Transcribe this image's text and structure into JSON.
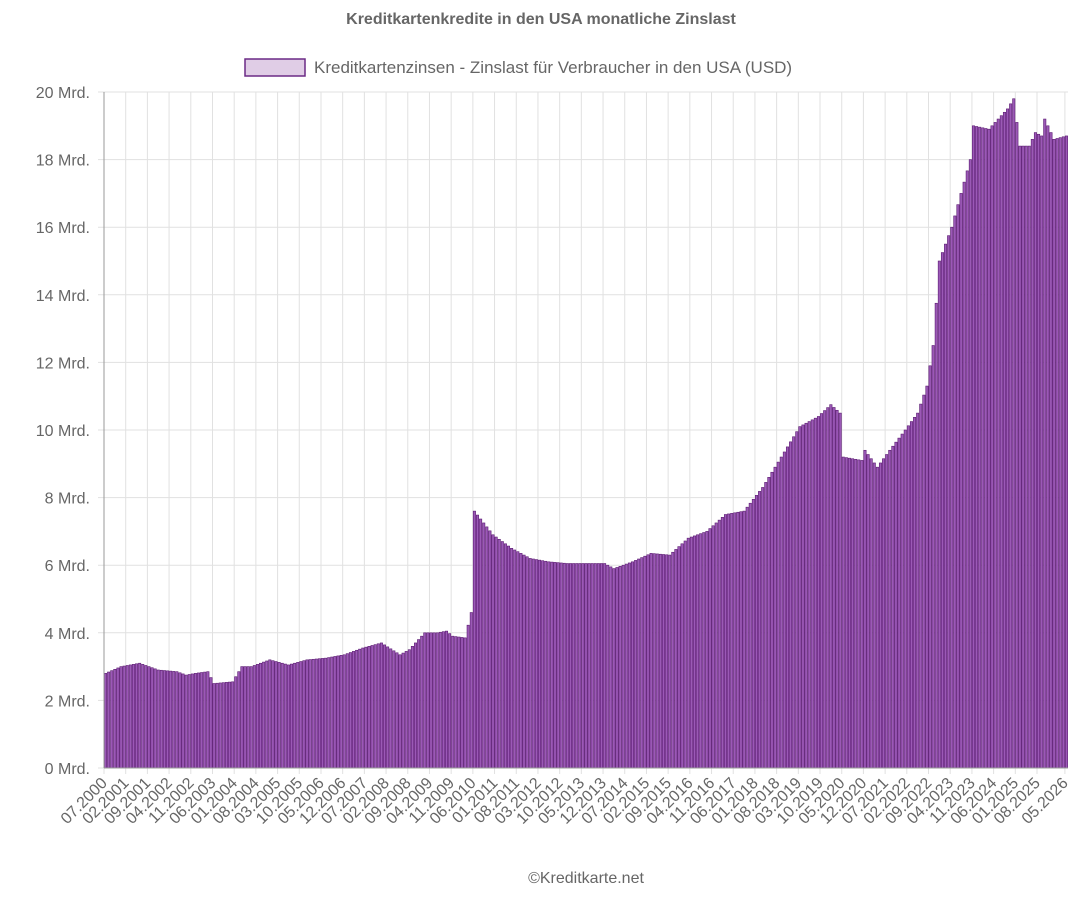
{
  "colors": {
    "bar_fill": "#9b59b6",
    "bar_stroke": "#5b1a72",
    "legend_fill": "#e0cde6",
    "grid": "#e1e1e1",
    "axis": "#666666",
    "text": "#666666"
  },
  "chart_data": {
    "type": "bar",
    "title": "Kreditkartenkredite in den USA monatliche Zinslast",
    "legend_position": "top",
    "series": [
      {
        "name": "Kreditkartenzinsen - Zinslast für Verbraucher in den USA (USD)"
      }
    ],
    "ylim": [
      0,
      20
    ],
    "y_unit": "Mrd.",
    "y_ticks": [
      0,
      2,
      4,
      6,
      8,
      10,
      12,
      14,
      16,
      18,
      20
    ],
    "y_tick_labels": [
      "0 Mrd.",
      "2 Mrd.",
      "4 Mrd.",
      "6 Mrd.",
      "8 Mrd.",
      "10 Mrd.",
      "12 Mrd.",
      "14 Mrd.",
      "16 Mrd.",
      "18 Mrd.",
      "20 Mrd."
    ],
    "x_tick_labels": [
      "07.2000",
      "02.2001",
      "09.2001",
      "04.2002",
      "11.2002",
      "06.2003",
      "01.2004",
      "08.2004",
      "03.2005",
      "10.2005",
      "05.2006",
      "12.2006",
      "07.2007",
      "02.2008",
      "09.2008",
      "04.2009",
      "11.2009",
      "06.2010",
      "01.2011",
      "08.2011",
      "03.2012",
      "10.2012",
      "05.2013",
      "12.2013",
      "07.2014",
      "02.2015",
      "09.2015",
      "04.2016",
      "11.2016",
      "06.2017",
      "01.2018",
      "08.2018",
      "03.2019",
      "10.2019",
      "05.2020",
      "12.2020",
      "07.2021",
      "02.2022",
      "09.2022",
      "04.2023",
      "11.2023",
      "06.2024",
      "01.2025",
      "08.2025",
      "05.2026"
    ],
    "grid": true,
    "anchors": [
      [
        "07.2000",
        2.8
      ],
      [
        "12.2000",
        3.0
      ],
      [
        "06.2001",
        3.1
      ],
      [
        "12.2001",
        2.9
      ],
      [
        "06.2002",
        2.85
      ],
      [
        "09.2002",
        2.75
      ],
      [
        "12.2002",
        2.8
      ],
      [
        "04.2003",
        2.85
      ],
      [
        "06.2003",
        2.5
      ],
      [
        "12.2003",
        2.55
      ],
      [
        "03.2004",
        3.0
      ],
      [
        "06.2004",
        3.0
      ],
      [
        "12.2004",
        3.2
      ],
      [
        "06.2005",
        3.05
      ],
      [
        "12.2005",
        3.2
      ],
      [
        "06.2006",
        3.25
      ],
      [
        "12.2006",
        3.35
      ],
      [
        "06.2007",
        3.55
      ],
      [
        "12.2007",
        3.7
      ],
      [
        "06.2008",
        3.35
      ],
      [
        "09.2008",
        3.5
      ],
      [
        "02.2009",
        4.0
      ],
      [
        "06.2009",
        4.0
      ],
      [
        "09.2009",
        4.05
      ],
      [
        "11.2009",
        3.9
      ],
      [
        "03.2010",
        3.85
      ],
      [
        "05.2010",
        4.6
      ],
      [
        "06.2010",
        7.6
      ],
      [
        "12.2010",
        6.9
      ],
      [
        "06.2011",
        6.5
      ],
      [
        "12.2011",
        6.2
      ],
      [
        "06.2012",
        6.1
      ],
      [
        "12.2012",
        6.05
      ],
      [
        "06.2013",
        6.05
      ],
      [
        "12.2013",
        6.05
      ],
      [
        "03.2014",
        5.9
      ],
      [
        "09.2014",
        6.1
      ],
      [
        "03.2015",
        6.35
      ],
      [
        "09.2015",
        6.3
      ],
      [
        "03.2016",
        6.8
      ],
      [
        "09.2016",
        7.0
      ],
      [
        "03.2017",
        7.5
      ],
      [
        "09.2017",
        7.6
      ],
      [
        "03.2018",
        8.3
      ],
      [
        "09.2018",
        9.2
      ],
      [
        "03.2019",
        10.1
      ],
      [
        "09.2019",
        10.4
      ],
      [
        "01.2020",
        10.75
      ],
      [
        "04.2020",
        10.5
      ],
      [
        "05.2020",
        9.2
      ],
      [
        "11.2020",
        9.1
      ],
      [
        "12.2020",
        9.4
      ],
      [
        "04.2021",
        8.9
      ],
      [
        "08.2021",
        9.4
      ],
      [
        "01.2022",
        10.0
      ],
      [
        "05.2022",
        10.5
      ],
      [
        "08.2022",
        11.3
      ],
      [
        "10.2022",
        12.5
      ],
      [
        "12.2022",
        15.0
      ],
      [
        "04.2023",
        16.0
      ],
      [
        "10.2023",
        18.0
      ],
      [
        "11.2023",
        19.0
      ],
      [
        "04.2024",
        18.9
      ],
      [
        "10.2024",
        19.5
      ],
      [
        "12.2024",
        19.8
      ],
      [
        "02.2025",
        18.4
      ],
      [
        "05.2025",
        18.4
      ],
      [
        "07.2025",
        18.8
      ],
      [
        "09.2025",
        18.7
      ],
      [
        "10.2025",
        19.2
      ],
      [
        "01.2026",
        18.6
      ],
      [
        "05.2026",
        18.7
      ]
    ]
  },
  "footer": {
    "credit": "©Kreditkarte.net"
  }
}
